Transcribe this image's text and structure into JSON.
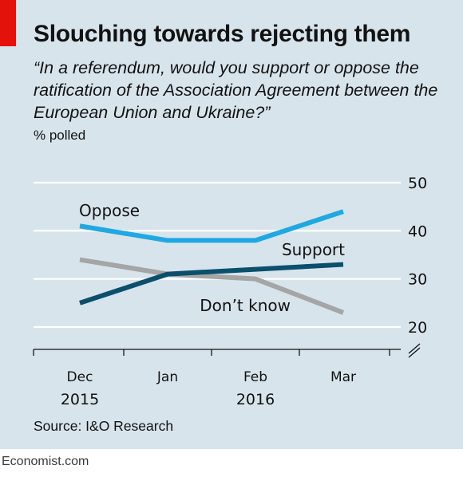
{
  "header": {
    "title": "Slouching towards rejecting them",
    "subtitle": "“In a referendum, would you support or oppose the ratification of the Association Agreement between the European Union and Ukraine?”",
    "unit": "% polled"
  },
  "footer": {
    "source": "Source: I&O Research",
    "brand": "Economist.com"
  },
  "colors": {
    "panel": "#d7e4ec",
    "accent_red": "#e3120b",
    "oppose": "#1fa8e1",
    "support": "#0b4f6c",
    "dont_know": "#a5a5a5",
    "gridline": "#ffffff"
  },
  "chart_data": {
    "type": "line",
    "title": "Slouching towards rejecting them",
    "ylabel": "% polled",
    "x": [
      "Dec",
      "Jan",
      "Feb",
      "Mar"
    ],
    "x_years": [
      "2015",
      "",
      "2016",
      ""
    ],
    "ylim": [
      20,
      50
    ],
    "yticks": [
      50,
      40,
      30,
      20
    ],
    "axis_break": true,
    "grid": true,
    "y_axis_side": "right",
    "series": [
      {
        "name": "Oppose",
        "values": [
          41,
          38,
          38,
          44
        ],
        "color": "#1fa8e1",
        "label_position": "above-left"
      },
      {
        "name": "Support",
        "values": [
          25,
          31,
          32,
          33
        ],
        "color": "#0b4f6c",
        "label_position": "above-right"
      },
      {
        "name": "Don’t know",
        "values": [
          34,
          31,
          30,
          23
        ],
        "color": "#a5a5a5",
        "label_position": "below-right"
      }
    ]
  }
}
